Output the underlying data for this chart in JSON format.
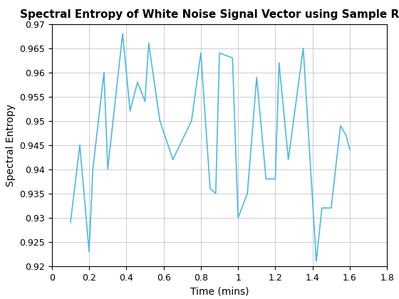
{
  "title": "Spectral Entropy of White Noise Signal Vector using Sample Rate",
  "xlabel": "Time (mins)",
  "ylabel": "Spectral Entropy",
  "xlim": [
    0,
    1.8
  ],
  "ylim": [
    0.92,
    0.97
  ],
  "xticks": [
    0,
    0.2,
    0.4,
    0.6,
    0.8,
    1.0,
    1.2,
    1.4,
    1.6,
    1.8
  ],
  "yticks": [
    0.92,
    0.925,
    0.93,
    0.935,
    0.94,
    0.945,
    0.95,
    0.955,
    0.96,
    0.965,
    0.97
  ],
  "line_color": "#4db8e8",
  "line_width": 1.2,
  "x": [
    0.1,
    0.15,
    0.2,
    0.22,
    0.28,
    0.3,
    0.38,
    0.42,
    0.46,
    0.5,
    0.52,
    0.58,
    0.65,
    0.75,
    0.8,
    0.85,
    0.88,
    0.9,
    0.97,
    1.0,
    1.05,
    1.1,
    1.15,
    1.2,
    1.22,
    1.27,
    1.35,
    1.42,
    1.45,
    1.5,
    1.55,
    1.58,
    1.6
  ],
  "y": [
    0.929,
    0.945,
    0.923,
    0.94,
    0.96,
    0.94,
    0.968,
    0.952,
    0.958,
    0.954,
    0.966,
    0.95,
    0.942,
    0.95,
    0.964,
    0.936,
    0.935,
    0.964,
    0.963,
    0.93,
    0.935,
    0.959,
    0.938,
    0.938,
    0.962,
    0.942,
    0.965,
    0.921,
    0.932,
    0.932,
    0.949,
    0.947,
    0.944
  ],
  "grid": true,
  "grid_color": "#cccccc",
  "background_color": "#ffffff",
  "title_fontsize": 11,
  "label_fontsize": 10,
  "tick_fontsize": 9
}
